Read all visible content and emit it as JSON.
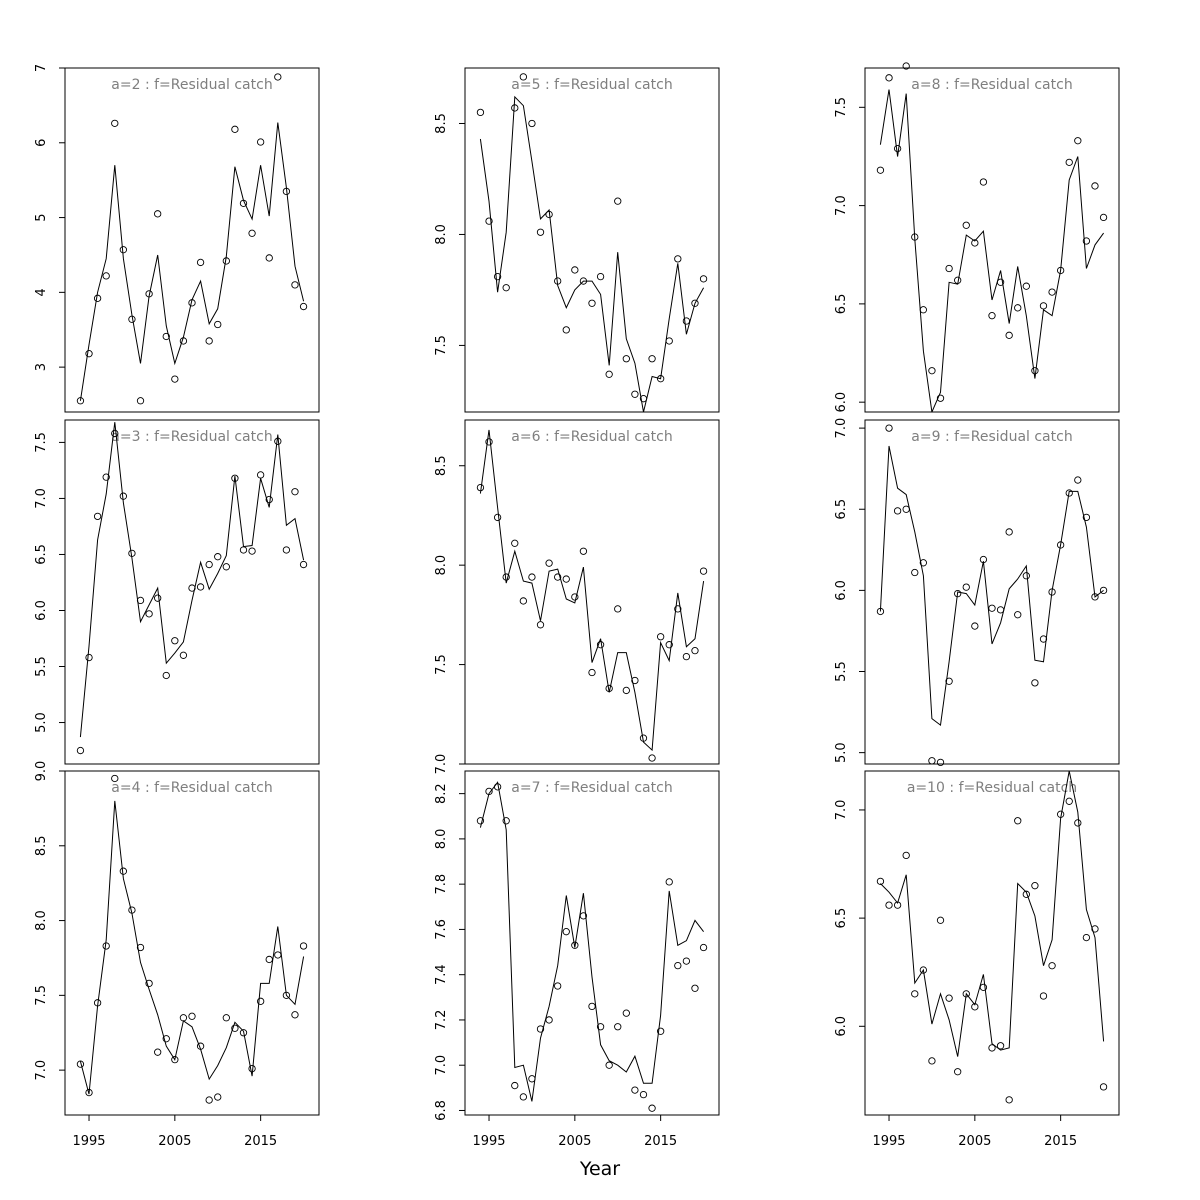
{
  "figure": {
    "xlabel": "Year",
    "colors": {
      "axis": "#000000",
      "title": "#7f7f7f",
      "line": "#000000",
      "points": "#000000"
    }
  },
  "chart_data": [
    {
      "type": "line",
      "title": "a=2  :  f=Residual catch",
      "xlim": [
        1992.2,
        2021.8
      ],
      "ylim": [
        2.4,
        7.0
      ],
      "yticks": [
        3,
        4,
        5,
        6,
        7
      ],
      "xticks": [
        1995,
        2005,
        2015
      ],
      "x": [
        1994,
        1995,
        1996,
        1997,
        1998,
        1999,
        2000,
        2001,
        2002,
        2003,
        2004,
        2005,
        2006,
        2007,
        2008,
        2009,
        2010,
        2011,
        2012,
        2013,
        2014,
        2015,
        2016,
        2017,
        2018,
        2019,
        2020
      ],
      "series": [
        {
          "style": "points",
          "values": [
            2.55,
            3.18,
            3.92,
            4.22,
            6.26,
            4.57,
            3.64,
            2.55,
            3.98,
            5.05,
            3.41,
            2.84,
            3.35,
            3.86,
            4.4,
            3.35,
            3.57,
            4.42,
            6.18,
            5.19,
            4.79,
            6.01,
            4.46,
            6.88,
            5.35,
            4.1,
            3.81
          ]
        },
        {
          "style": "line",
          "values": [
            2.55,
            3.3,
            4.0,
            4.45,
            5.7,
            4.45,
            3.7,
            3.05,
            3.95,
            4.5,
            3.55,
            3.05,
            3.4,
            3.9,
            4.15,
            3.58,
            3.78,
            4.48,
            5.68,
            5.23,
            4.98,
            5.7,
            5.02,
            6.27,
            5.4,
            4.35,
            3.88
          ]
        }
      ]
    },
    {
      "type": "line",
      "title": "a=5  :  f=Residual catch",
      "xlim": [
        1992.2,
        2021.8
      ],
      "ylim": [
        7.2,
        8.75
      ],
      "yticks": [
        7.5,
        8.0,
        8.5
      ],
      "xticks": [
        1995,
        2005,
        2015
      ],
      "x": [
        1994,
        1995,
        1996,
        1997,
        1998,
        1999,
        2000,
        2001,
        2002,
        2003,
        2004,
        2005,
        2006,
        2007,
        2008,
        2009,
        2010,
        2011,
        2012,
        2013,
        2014,
        2015,
        2016,
        2017,
        2018,
        2019,
        2020
      ],
      "series": [
        {
          "style": "points",
          "values": [
            8.55,
            8.06,
            7.81,
            7.76,
            8.57,
            8.71,
            8.5,
            8.01,
            8.09,
            7.79,
            7.57,
            7.84,
            7.79,
            7.69,
            7.81,
            7.37,
            8.15,
            7.44,
            7.28,
            7.26,
            7.44,
            7.35,
            7.52,
            7.89,
            7.61,
            7.69,
            7.8
          ]
        },
        {
          "style": "line",
          "values": [
            8.43,
            8.15,
            7.74,
            8.01,
            8.62,
            8.58,
            8.33,
            8.07,
            8.11,
            7.77,
            7.67,
            7.75,
            7.79,
            7.79,
            7.73,
            7.41,
            7.92,
            7.53,
            7.42,
            7.2,
            7.36,
            7.35,
            7.62,
            7.87,
            7.55,
            7.69,
            7.76
          ]
        }
      ]
    },
    {
      "type": "line",
      "title": "a=8  :  f=Residual catch",
      "xlim": [
        1992.2,
        2021.8
      ],
      "ylim": [
        5.95,
        7.7
      ],
      "yticks": [
        6.0,
        6.5,
        7.0,
        7.5
      ],
      "xticks": [
        1995,
        2005,
        2015
      ],
      "x": [
        1994,
        1995,
        1996,
        1997,
        1998,
        1999,
        2000,
        2001,
        2002,
        2003,
        2004,
        2005,
        2006,
        2007,
        2008,
        2009,
        2010,
        2011,
        2012,
        2013,
        2014,
        2015,
        2016,
        2017,
        2018,
        2019,
        2020
      ],
      "series": [
        {
          "style": "points",
          "values": [
            7.18,
            7.65,
            7.29,
            7.71,
            6.84,
            6.47,
            6.16,
            6.02,
            6.68,
            6.62,
            6.9,
            6.81,
            7.12,
            6.44,
            6.61,
            6.34,
            6.48,
            6.59,
            6.16,
            6.49,
            6.56,
            6.67,
            7.22,
            7.33,
            6.82,
            7.1,
            6.94
          ]
        },
        {
          "style": "line",
          "values": [
            7.31,
            7.59,
            7.25,
            7.57,
            6.83,
            6.26,
            5.95,
            6.05,
            6.61,
            6.6,
            6.85,
            6.82,
            6.87,
            6.52,
            6.67,
            6.4,
            6.69,
            6.44,
            6.12,
            6.47,
            6.44,
            6.67,
            7.13,
            7.25,
            6.68,
            6.8,
            6.86
          ]
        }
      ]
    },
    {
      "type": "line",
      "title": "a=3  :  f=Residual catch",
      "xlim": [
        1992.2,
        2021.8
      ],
      "ylim": [
        4.63,
        7.7
      ],
      "yticks": [
        5.0,
        5.5,
        6.0,
        6.5,
        7.0,
        7.5
      ],
      "xticks": [
        1995,
        2005,
        2015
      ],
      "x": [
        1994,
        1995,
        1996,
        1997,
        1998,
        1999,
        2000,
        2001,
        2002,
        2003,
        2004,
        2005,
        2006,
        2007,
        2008,
        2009,
        2010,
        2011,
        2012,
        2013,
        2014,
        2015,
        2016,
        2017,
        2018,
        2019,
        2020
      ],
      "series": [
        {
          "style": "points",
          "values": [
            4.75,
            5.58,
            6.84,
            7.19,
            7.58,
            7.02,
            6.51,
            6.09,
            5.97,
            6.11,
            5.42,
            5.73,
            5.6,
            6.2,
            6.21,
            6.41,
            6.48,
            6.39,
            7.18,
            6.54,
            6.53,
            7.21,
            6.99,
            7.51,
            6.54,
            7.06,
            6.41
          ]
        },
        {
          "style": "line",
          "values": [
            4.87,
            5.68,
            6.63,
            7.04,
            7.68,
            6.96,
            6.47,
            5.9,
            6.05,
            6.2,
            5.53,
            5.62,
            5.72,
            6.09,
            6.43,
            6.19,
            6.33,
            6.49,
            7.2,
            6.57,
            6.58,
            7.18,
            6.92,
            7.57,
            6.76,
            6.82,
            6.45
          ]
        }
      ]
    },
    {
      "type": "line",
      "title": "a=6  :  f=Residual catch",
      "xlim": [
        1992.2,
        2021.8
      ],
      "ylim": [
        7.0,
        8.73
      ],
      "yticks": [
        7.0,
        7.5,
        8.0,
        8.5
      ],
      "xticks": [
        1995,
        2005,
        2015
      ],
      "x": [
        1994,
        1995,
        1996,
        1997,
        1998,
        1999,
        2000,
        2001,
        2002,
        2003,
        2004,
        2005,
        2006,
        2007,
        2008,
        2009,
        2010,
        2011,
        2012,
        2013,
        2014,
        2015,
        2016,
        2017,
        2018,
        2019,
        2020
      ],
      "series": [
        {
          "style": "points",
          "values": [
            8.39,
            8.62,
            8.24,
            7.94,
            8.11,
            7.82,
            7.94,
            7.7,
            8.01,
            7.94,
            7.93,
            7.84,
            8.07,
            7.46,
            7.6,
            7.38,
            7.78,
            7.37,
            7.42,
            7.13,
            7.03,
            7.64,
            7.6,
            7.78,
            7.54,
            7.57,
            7.97
          ]
        },
        {
          "style": "line",
          "values": [
            8.36,
            8.68,
            8.29,
            7.91,
            8.07,
            7.92,
            7.91,
            7.72,
            7.97,
            7.98,
            7.83,
            7.81,
            7.99,
            7.51,
            7.63,
            7.36,
            7.56,
            7.56,
            7.36,
            7.11,
            7.07,
            7.61,
            7.52,
            7.86,
            7.59,
            7.63,
            7.92
          ]
        }
      ]
    },
    {
      "type": "line",
      "title": "a=9  :  f=Residual catch",
      "xlim": [
        1992.2,
        2021.8
      ],
      "ylim": [
        4.93,
        7.05
      ],
      "yticks": [
        5.0,
        5.5,
        6.0,
        6.5,
        7.0
      ],
      "xticks": [
        1995,
        2005,
        2015
      ],
      "x": [
        1994,
        1995,
        1996,
        1997,
        1998,
        1999,
        2000,
        2001,
        2002,
        2003,
        2004,
        2005,
        2006,
        2007,
        2008,
        2009,
        2010,
        2011,
        2012,
        2013,
        2014,
        2015,
        2016,
        2017,
        2018,
        2019,
        2020
      ],
      "series": [
        {
          "style": "points",
          "values": [
            5.87,
            7.0,
            6.49,
            6.5,
            6.11,
            6.17,
            4.95,
            4.94,
            5.44,
            5.98,
            6.02,
            5.78,
            6.19,
            5.89,
            5.88,
            6.36,
            5.85,
            6.09,
            5.43,
            5.7,
            5.99,
            6.28,
            6.6,
            6.68,
            6.45,
            5.96,
            6.0
          ]
        },
        {
          "style": "line",
          "values": [
            5.87,
            6.89,
            6.63,
            6.59,
            6.36,
            6.09,
            5.21,
            5.17,
            5.56,
            5.99,
            5.98,
            5.91,
            6.18,
            5.67,
            5.8,
            6.01,
            6.07,
            6.15,
            5.57,
            5.56,
            6.0,
            6.28,
            6.61,
            6.61,
            6.39,
            5.96,
            6.0
          ]
        }
      ]
    },
    {
      "type": "line",
      "title": "a=4  :  f=Residual catch",
      "xlim": [
        1992.2,
        2021.8
      ],
      "ylim": [
        6.7,
        9.0
      ],
      "yticks": [
        7.0,
        7.5,
        8.0,
        8.5,
        9.0
      ],
      "xticks": [
        1995,
        2005,
        2015
      ],
      "x": [
        1994,
        1995,
        1996,
        1997,
        1998,
        1999,
        2000,
        2001,
        2002,
        2003,
        2004,
        2005,
        2006,
        2007,
        2008,
        2009,
        2010,
        2011,
        2012,
        2013,
        2014,
        2015,
        2016,
        2017,
        2018,
        2019,
        2020
      ],
      "series": [
        {
          "style": "points",
          "values": [
            7.04,
            6.85,
            7.45,
            7.83,
            8.95,
            8.33,
            8.07,
            7.82,
            7.58,
            7.12,
            7.21,
            7.07,
            7.35,
            7.36,
            7.16,
            6.8,
            6.82,
            7.35,
            7.28,
            7.25,
            7.01,
            7.46,
            7.74,
            7.77,
            7.5,
            7.37,
            7.83
          ]
        },
        {
          "style": "line",
          "values": [
            7.06,
            6.84,
            7.43,
            7.87,
            8.8,
            8.28,
            8.05,
            7.72,
            7.54,
            7.37,
            7.16,
            7.07,
            7.33,
            7.29,
            7.14,
            6.94,
            7.03,
            7.15,
            7.32,
            7.26,
            6.96,
            7.58,
            7.58,
            7.96,
            7.5,
            7.44,
            7.76
          ]
        }
      ]
    },
    {
      "type": "line",
      "title": "a=7  :  f=Residual catch",
      "xlim": [
        1992.2,
        2021.8
      ],
      "ylim": [
        6.78,
        8.3
      ],
      "yticks": [
        6.8,
        7.0,
        7.2,
        7.4,
        7.6,
        7.8,
        8.0,
        8.2
      ],
      "xticks": [
        1995,
        2005,
        2015
      ],
      "x": [
        1994,
        1995,
        1996,
        1997,
        1998,
        1999,
        2000,
        2001,
        2002,
        2003,
        2004,
        2005,
        2006,
        2007,
        2008,
        2009,
        2010,
        2011,
        2012,
        2013,
        2014,
        2015,
        2016,
        2017,
        2018,
        2019,
        2020
      ],
      "series": [
        {
          "style": "points",
          "values": [
            8.08,
            8.21,
            8.23,
            8.08,
            6.91,
            6.86,
            6.94,
            7.16,
            7.2,
            7.35,
            7.59,
            7.53,
            7.66,
            7.26,
            7.17,
            7.0,
            7.17,
            7.23,
            6.89,
            6.87,
            6.81,
            7.15,
            7.81,
            7.44,
            7.46,
            7.34,
            7.52
          ]
        },
        {
          "style": "line",
          "values": [
            8.05,
            8.2,
            8.25,
            8.04,
            6.99,
            7.0,
            6.84,
            7.12,
            7.26,
            7.44,
            7.75,
            7.52,
            7.76,
            7.39,
            7.09,
            7.02,
            7.0,
            6.97,
            7.04,
            6.92,
            6.92,
            7.22,
            7.77,
            7.53,
            7.55,
            7.64,
            7.59
          ]
        }
      ]
    },
    {
      "type": "line",
      "title": "a=10  :  f=Residual catch",
      "xlim": [
        1992.2,
        2021.8
      ],
      "ylim": [
        5.59,
        7.18
      ],
      "yticks": [
        6.0,
        6.5,
        7.0
      ],
      "xticks": [
        1995,
        2005,
        2015
      ],
      "x": [
        1994,
        1995,
        1996,
        1997,
        1998,
        1999,
        2000,
        2001,
        2002,
        2003,
        2004,
        2005,
        2006,
        2007,
        2008,
        2009,
        2010,
        2011,
        2012,
        2013,
        2014,
        2015,
        2016,
        2017,
        2018,
        2019,
        2020
      ],
      "series": [
        {
          "style": "points",
          "values": [
            6.67,
            6.56,
            6.56,
            6.79,
            6.15,
            6.26,
            5.84,
            6.49,
            6.13,
            5.79,
            6.15,
            6.09,
            6.18,
            5.9,
            5.91,
            5.66,
            6.95,
            6.61,
            6.65,
            6.14,
            6.28,
            6.98,
            7.04,
            6.94,
            6.41,
            6.45,
            5.72
          ]
        },
        {
          "style": "line",
          "values": [
            6.66,
            6.62,
            6.57,
            6.7,
            6.2,
            6.26,
            6.01,
            6.15,
            6.03,
            5.86,
            6.15,
            6.1,
            6.24,
            5.92,
            5.89,
            5.9,
            6.66,
            6.62,
            6.51,
            6.28,
            6.4,
            6.96,
            7.18,
            6.99,
            6.54,
            6.41,
            5.93
          ]
        }
      ]
    }
  ]
}
